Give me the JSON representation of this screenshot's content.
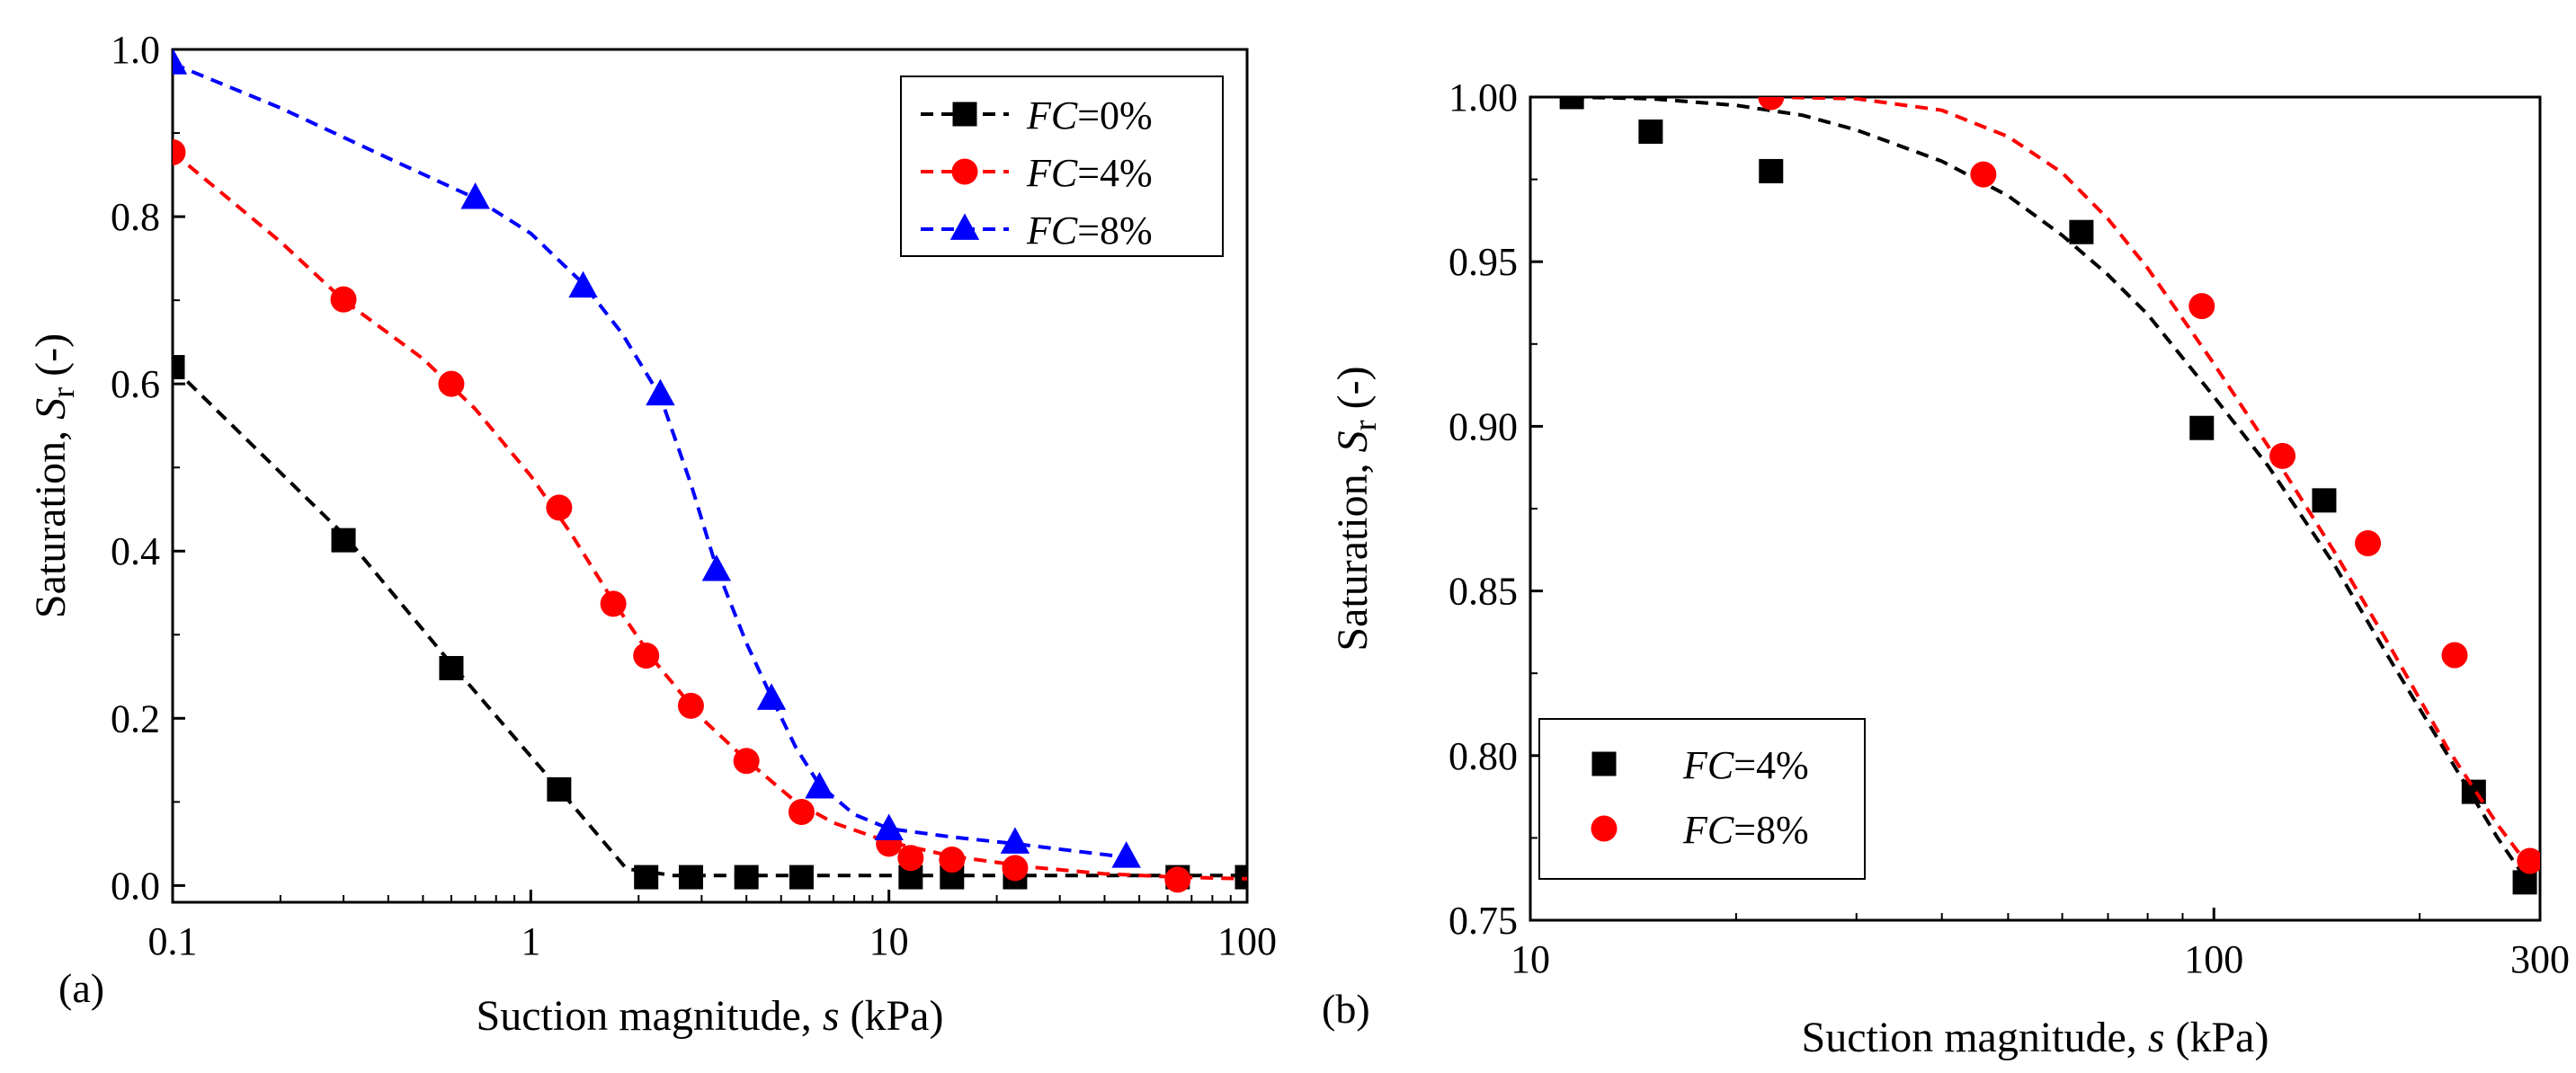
{
  "figure": {
    "panel_labels": [
      "(a)",
      "(b)"
    ]
  },
  "chart_data": [
    {
      "type": "scatter",
      "panel": "(a)",
      "xscale": "log",
      "xlim": [
        0.1,
        100
      ],
      "ylim": [
        -0.02,
        1.0
      ],
      "xticks": [
        0.1,
        1,
        10,
        100
      ],
      "xtick_labels": [
        "0.1",
        "1",
        "10",
        "100"
      ],
      "yticks": [
        0.0,
        0.2,
        0.4,
        0.6,
        0.8,
        1.0
      ],
      "ytick_labels": [
        "0.0",
        "0.2",
        "0.4",
        "0.6",
        "0.8",
        "1.0"
      ],
      "xlabel": {
        "pre": "Suction magnitude, ",
        "var": "s",
        "post": " (kPa)"
      },
      "ylabel": {
        "pre": "Saturation, ",
        "var": "S",
        "sub": "r",
        "post": " (-)"
      },
      "legend_position": "top-right",
      "legend_style": "marker-and-dashed-line",
      "series": [
        {
          "name": "FC=0%",
          "name_var": "FC",
          "name_rest": "=0%",
          "color": "#000000",
          "marker": "square",
          "x": [
            0.1,
            0.3,
            0.6,
            1.2,
            2.1,
            2.8,
            4,
            5.7,
            11.5,
            15,
            22.5,
            64,
            100
          ],
          "y": [
            0.62,
            0.413,
            0.26,
            0.115,
            0.01,
            0.01,
            0.01,
            0.01,
            0.01,
            0.01,
            0.01,
            0.01,
            0.01
          ],
          "fit_x": [
            0.1,
            0.3,
            0.6,
            1.2,
            1.85,
            2.5,
            4,
            10,
            30,
            100
          ],
          "fit_y": [
            0.62,
            0.42,
            0.265,
            0.115,
            0.02,
            0.012,
            0.012,
            0.012,
            0.012,
            0.012
          ]
        },
        {
          "name": "FC=4%",
          "name_var": "FC",
          "name_rest": "=4%",
          "color": "#ff0000",
          "marker": "circle",
          "x": [
            0.1,
            0.3,
            0.6,
            1.2,
            1.7,
            2.1,
            2.8,
            4,
            5.7,
            10,
            11.5,
            15,
            22.5,
            64
          ],
          "y": [
            0.877,
            0.701,
            0.6,
            0.452,
            0.337,
            0.275,
            0.215,
            0.149,
            0.088,
            0.05,
            0.033,
            0.031,
            0.021,
            0.007
          ],
          "fit_x": [
            0.1,
            0.2,
            0.3,
            0.5,
            0.7,
            1.0,
            1.3,
            1.7,
            2.2,
            3,
            4,
            5.5,
            7,
            10,
            15,
            25,
            40,
            65,
            100
          ],
          "fit_y": [
            0.877,
            0.77,
            0.7,
            0.63,
            0.57,
            0.49,
            0.42,
            0.34,
            0.27,
            0.2,
            0.15,
            0.1,
            0.075,
            0.052,
            0.035,
            0.022,
            0.014,
            0.01,
            0.008
          ]
        },
        {
          "name": "FC=8%",
          "name_var": "FC",
          "name_rest": "=8%",
          "color": "#0000ff",
          "marker": "triangle",
          "x": [
            0.1,
            0.7,
            1.4,
            2.3,
            3.3,
            4.7,
            6.4,
            10,
            22.5,
            46
          ],
          "y": [
            0.983,
            0.822,
            0.716,
            0.587,
            0.377,
            0.223,
            0.117,
            0.067,
            0.051,
            0.034
          ],
          "fit_x": [
            0.1,
            0.2,
            0.4,
            0.7,
            1.0,
            1.4,
            1.8,
            2.3,
            2.8,
            3.3,
            4,
            4.7,
            5.5,
            6.4,
            8,
            10,
            15,
            22.5,
            35,
            46
          ],
          "fit_y": [
            0.983,
            0.93,
            0.87,
            0.822,
            0.78,
            0.72,
            0.66,
            0.585,
            0.48,
            0.38,
            0.29,
            0.225,
            0.165,
            0.12,
            0.085,
            0.068,
            0.058,
            0.05,
            0.04,
            0.034
          ]
        }
      ]
    },
    {
      "type": "scatter",
      "panel": "(b)",
      "xscale": "log",
      "xlim": [
        10,
        300
      ],
      "ylim": [
        0.75,
        1.0
      ],
      "xticks": [
        10,
        100,
        300
      ],
      "xtick_labels": [
        "10",
        "100",
        "300"
      ],
      "yticks": [
        0.75,
        0.8,
        0.85,
        0.9,
        0.95,
        1.0
      ],
      "ytick_labels": [
        "0.75",
        "0.80",
        "0.85",
        "0.90",
        "0.95",
        "1.00"
      ],
      "xlabel": {
        "pre": "Suction magnitude, ",
        "var": "s",
        "post": " (kPa)"
      },
      "ylabel": {
        "pre": "Saturation, ",
        "var": "S",
        "sub": "r",
        "post": " (-)"
      },
      "legend_position": "bottom-left",
      "legend_style": "marker-only",
      "series": [
        {
          "name": "FC=4%",
          "name_var": "FC",
          "name_rest": "=4%",
          "color": "#000000",
          "marker": "square",
          "x": [
            11.5,
            15,
            22.5,
            64,
            96,
            145,
            240,
            285
          ],
          "y": [
            1.0,
            0.9895,
            0.9775,
            0.959,
            0.8995,
            0.8775,
            0.789,
            0.7615
          ],
          "fit_x": [
            11.5,
            15,
            20,
            25,
            30,
            40,
            50,
            60,
            70,
            80,
            100,
            120,
            150,
            180,
            220,
            260,
            285
          ],
          "fit_y": [
            1.0,
            0.9995,
            0.9975,
            0.9945,
            0.99,
            0.9805,
            0.97,
            0.958,
            0.946,
            0.934,
            0.909,
            0.888,
            0.858,
            0.83,
            0.8,
            0.775,
            0.763
          ]
        },
        {
          "name": "FC=8%",
          "name_var": "FC",
          "name_rest": "=8%",
          "color": "#ff0000",
          "marker": "circle",
          "x": [
            22.5,
            46,
            96,
            126,
            168,
            225,
            290
          ],
          "y": [
            1.0,
            0.9765,
            0.9365,
            0.891,
            0.8645,
            0.8305,
            0.768
          ],
          "fit_x": [
            22.5,
            30,
            40,
            50,
            60,
            70,
            80,
            100,
            120,
            150,
            180,
            220,
            260,
            290
          ],
          "fit_y": [
            1.0,
            0.9995,
            0.996,
            0.988,
            0.977,
            0.963,
            0.948,
            0.919,
            0.894,
            0.862,
            0.834,
            0.802,
            0.779,
            0.766
          ]
        }
      ]
    }
  ]
}
